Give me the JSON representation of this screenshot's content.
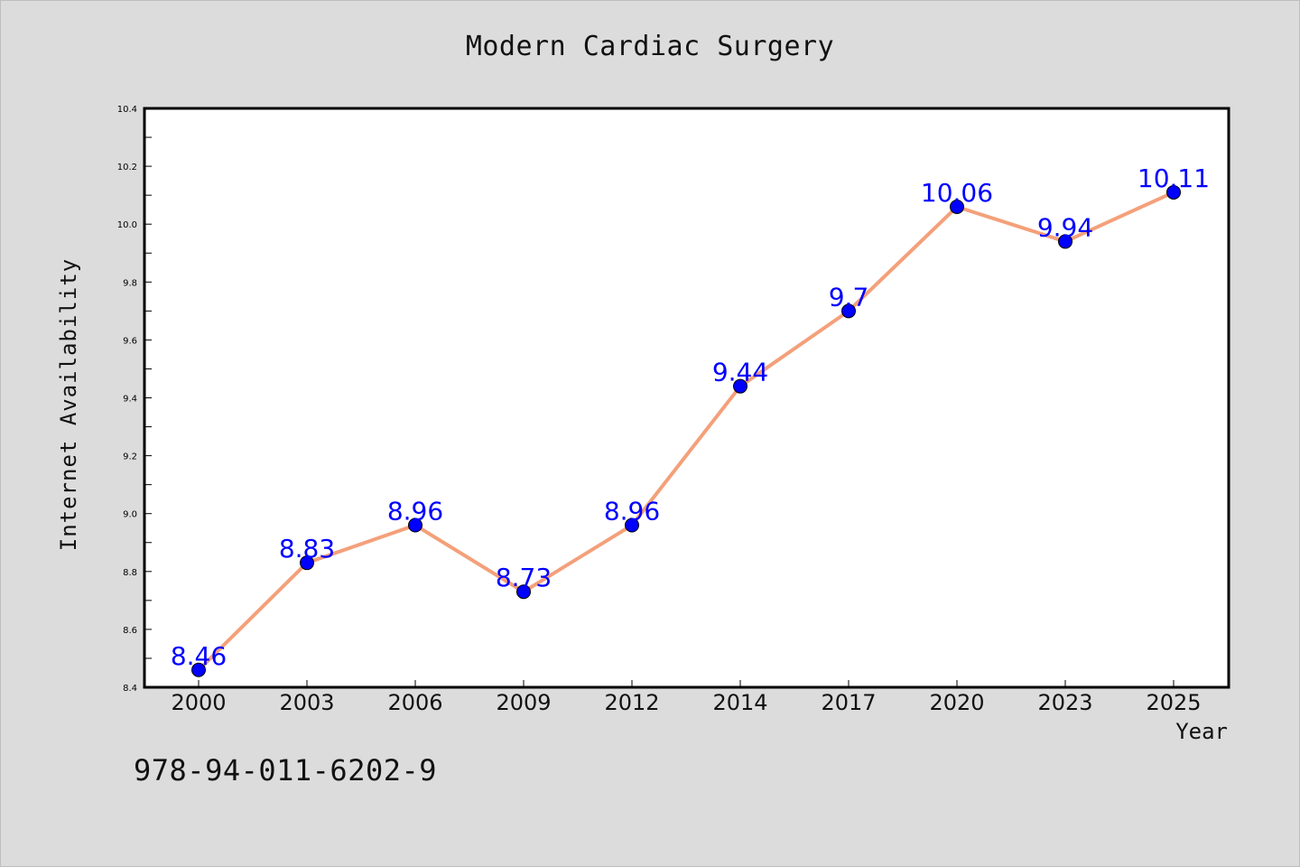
{
  "chart_data": {
    "type": "line",
    "title": "Modern Cardiac Surgery",
    "xlabel": "Year",
    "ylabel": "Internet Availability",
    "categories": [
      "2000",
      "2003",
      "2006",
      "2009",
      "2012",
      "2014",
      "2017",
      "2020",
      "2023",
      "2025"
    ],
    "values": [
      8.46,
      8.83,
      8.96,
      8.73,
      8.96,
      9.44,
      9.7,
      10.06,
      9.94,
      10.11
    ],
    "data_labels": [
      "8.46",
      "8.83",
      "8.96",
      "8.73",
      "8.96",
      "9.44",
      "9.7",
      "10.06",
      "9.94",
      "10.11"
    ],
    "ylim": [
      8.4,
      10.4
    ],
    "y_ticks": [
      "8.4",
      "8.6",
      "8.8",
      "9.0",
      "9.2",
      "9.4",
      "9.6",
      "9.8",
      "10.0",
      "10.2",
      "10.4"
    ],
    "grid": false,
    "legend": "none",
    "line_color": "#f4a07a",
    "marker_color": "#0000ff",
    "label_color": "#0000ff"
  },
  "footer": {
    "isbn": "978-94-011-6202-9"
  }
}
